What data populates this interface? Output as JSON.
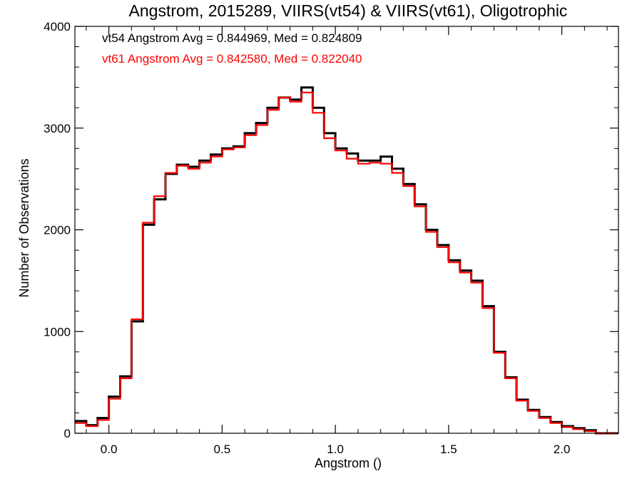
{
  "chart_data": {
    "type": "line",
    "style": "histogram-step",
    "title": "Angstrom, 2015289, VIIRS(vt54) & VIIRS(vt61), Oligotrophic",
    "xlabel": "Angstrom ()",
    "ylabel": "Number of Observations",
    "xlim": [
      -0.15,
      2.25
    ],
    "ylim": [
      0,
      4000
    ],
    "x_ticks": [
      0.0,
      0.5,
      1.0,
      1.5,
      2.0
    ],
    "x_tick_labels": [
      "0.0",
      "0.5",
      "1.0",
      "1.5",
      "2.0"
    ],
    "y_ticks": [
      0,
      1000,
      2000,
      3000,
      4000
    ],
    "y_tick_labels": [
      "0",
      "1000",
      "2000",
      "3000",
      "4000"
    ],
    "grid": false,
    "legend_placement": "top-left",
    "annotations": [
      {
        "text": "vt54 Angstrom Avg = 0.844969, Med = 0.824809",
        "color": "#000000"
      },
      {
        "text": "vt61 Angstrom Avg = 0.842580, Med = 0.822040",
        "color": "#ff0000"
      }
    ],
    "x": [
      -0.15,
      -0.1,
      -0.05,
      0.0,
      0.05,
      0.1,
      0.15,
      0.2,
      0.25,
      0.3,
      0.35,
      0.4,
      0.45,
      0.5,
      0.55,
      0.6,
      0.65,
      0.7,
      0.75,
      0.8,
      0.85,
      0.9,
      0.95,
      1.0,
      1.05,
      1.1,
      1.15,
      1.2,
      1.25,
      1.3,
      1.35,
      1.4,
      1.45,
      1.5,
      1.55,
      1.6,
      1.65,
      1.7,
      1.75,
      1.8,
      1.85,
      1.9,
      1.95,
      2.0,
      2.05,
      2.1,
      2.15,
      2.2,
      2.25
    ],
    "series": [
      {
        "color": "#000000",
        "values": [
          120,
          80,
          150,
          360,
          560,
          1100,
          2050,
          2300,
          2550,
          2640,
          2620,
          2680,
          2740,
          2800,
          2820,
          2950,
          3050,
          3200,
          3300,
          3280,
          3400,
          3200,
          2950,
          2800,
          2750,
          2680,
          2680,
          2720,
          2600,
          2450,
          2250,
          2000,
          1850,
          1700,
          1600,
          1500,
          1250,
          800,
          550,
          330,
          230,
          160,
          110,
          70,
          50,
          30,
          0,
          0,
          0
        ]
      },
      {
        "color": "#ff0000",
        "values": [
          100,
          70,
          130,
          340,
          540,
          1120,
          2070,
          2330,
          2560,
          2630,
          2600,
          2660,
          2720,
          2790,
          2810,
          2930,
          3030,
          3180,
          3300,
          3260,
          3350,
          3150,
          2900,
          2780,
          2700,
          2650,
          2660,
          2650,
          2560,
          2430,
          2230,
          1980,
          1830,
          1680,
          1580,
          1480,
          1230,
          790,
          540,
          320,
          220,
          150,
          100,
          60,
          40,
          20,
          0,
          0,
          0
        ]
      }
    ]
  }
}
